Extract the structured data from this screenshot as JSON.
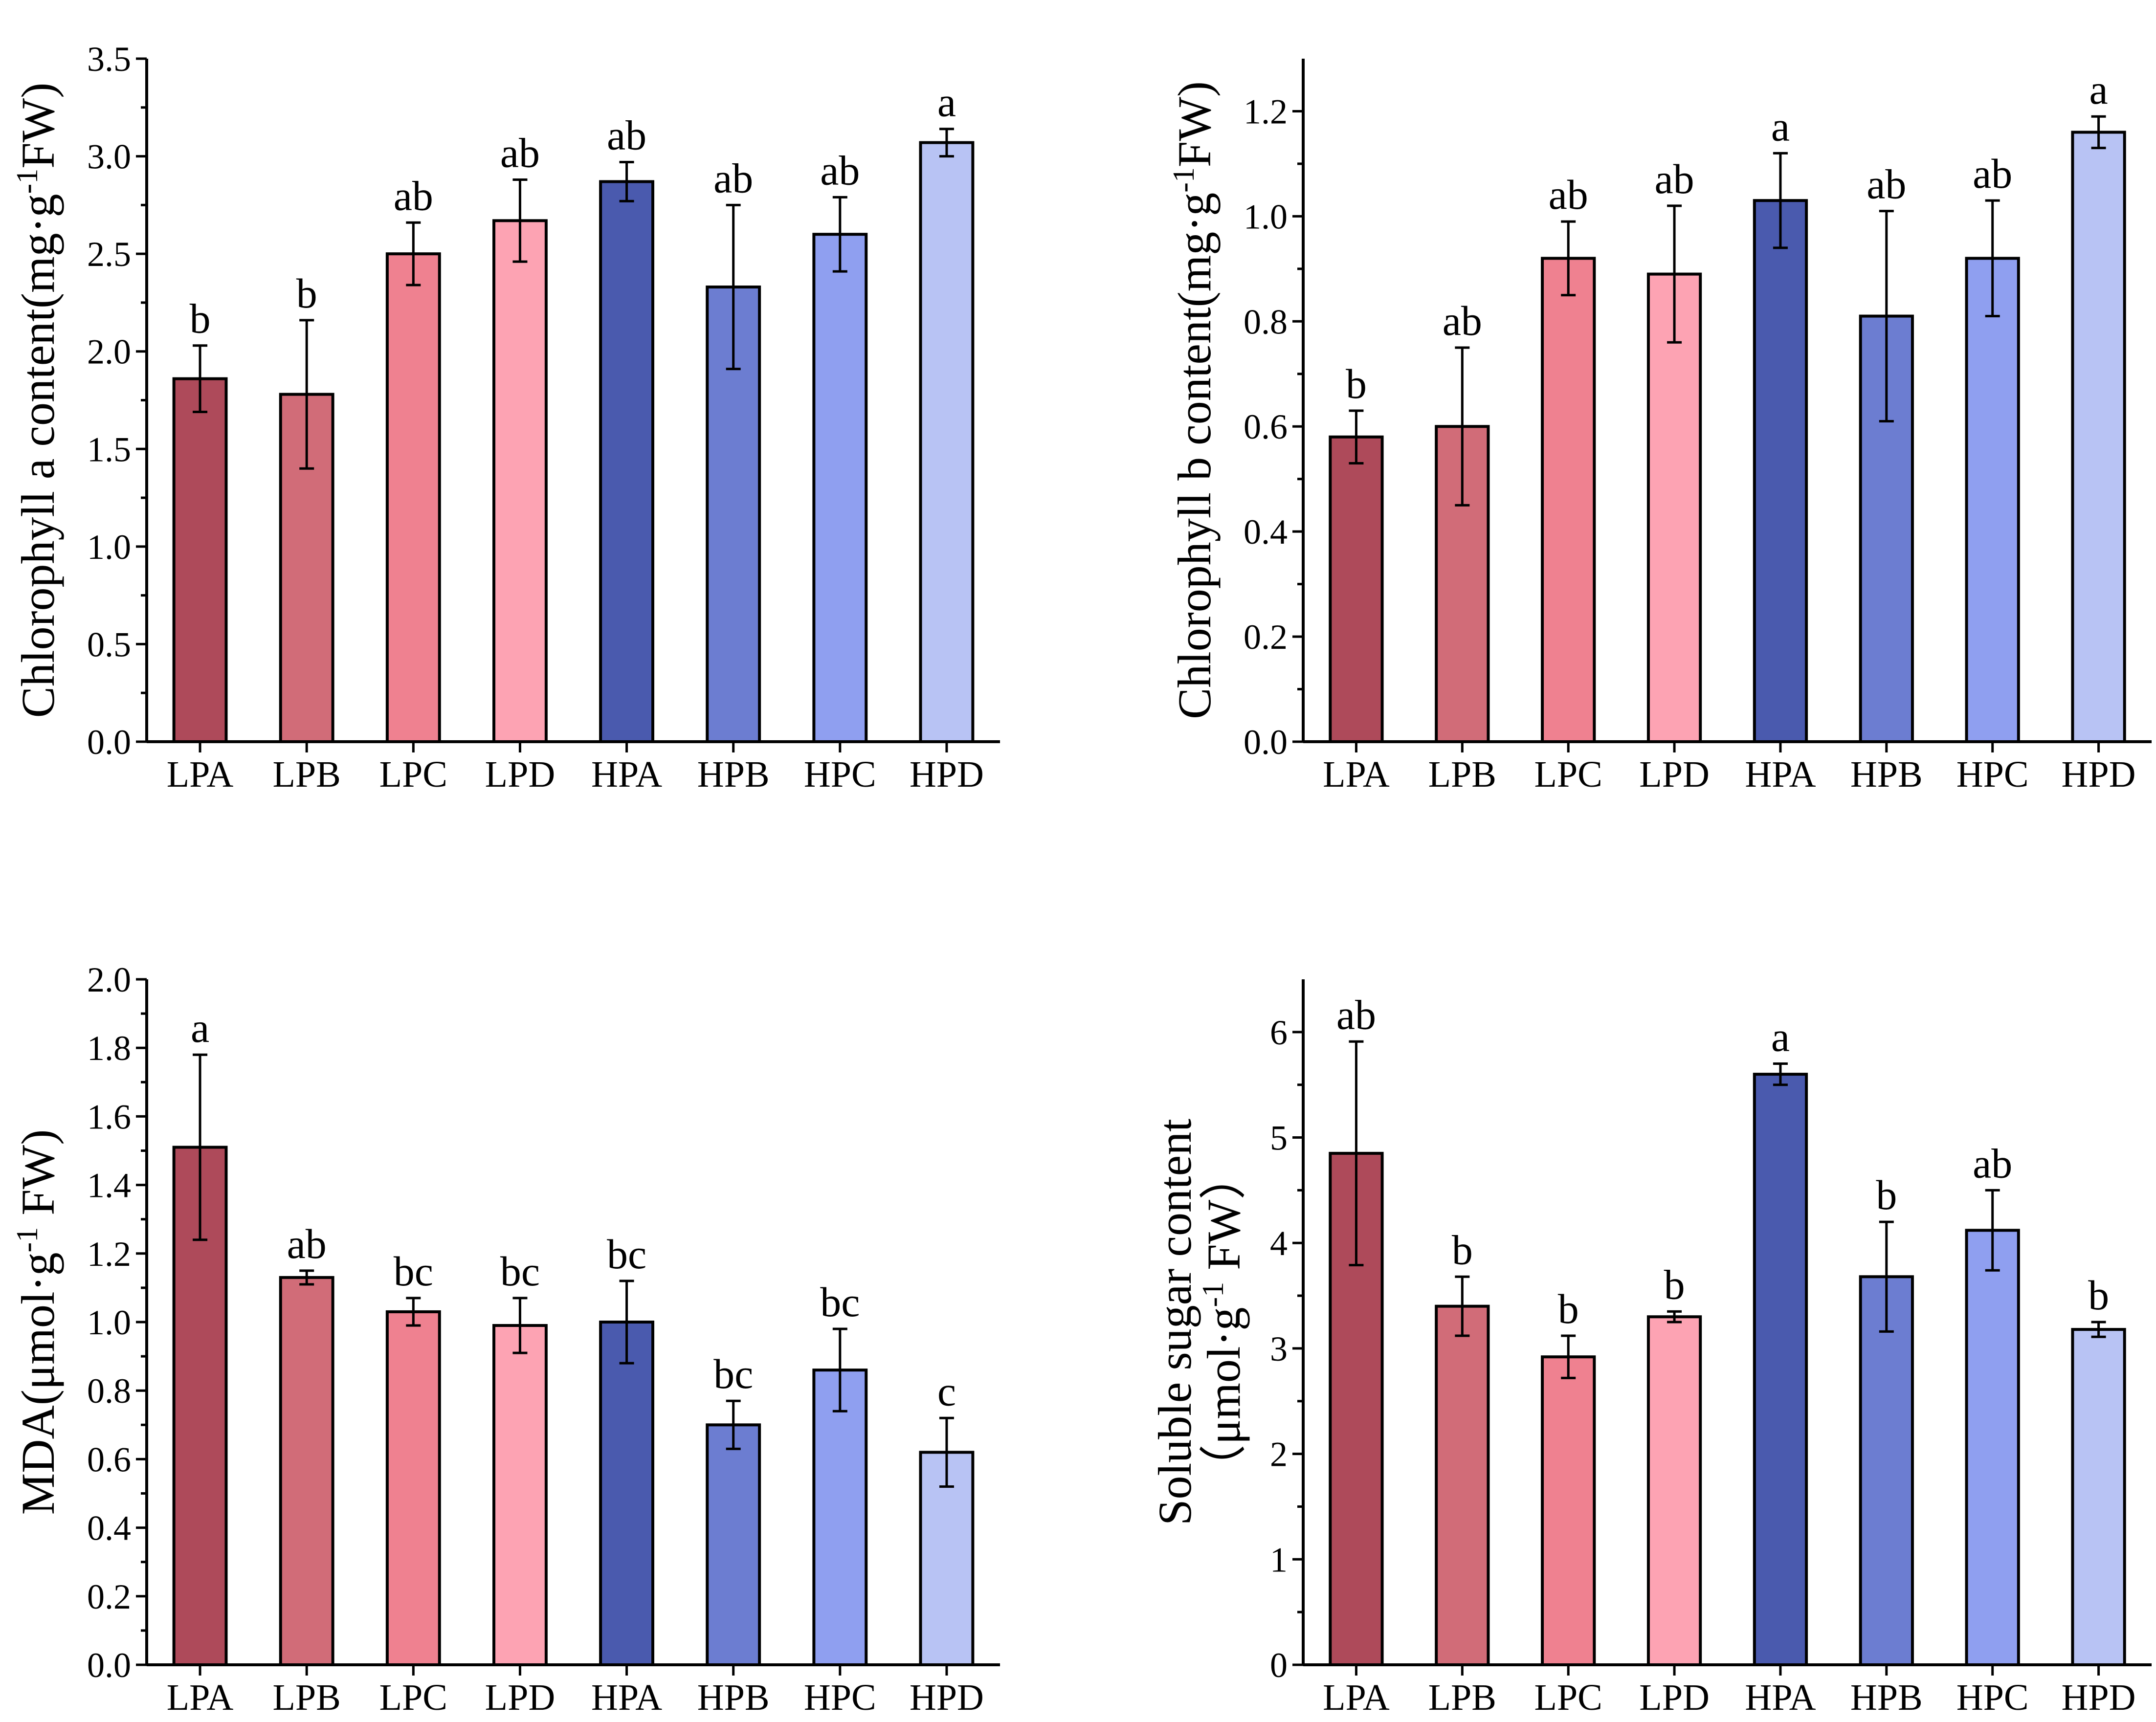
{
  "colors": [
    "#ae4a5a",
    "#d16c78",
    "#ef8190",
    "#fda3b3",
    "#4a5aae",
    "#6c7dd1",
    "#8f9ff0",
    "#b8c3f4"
  ],
  "chart_data": [
    {
      "type": "bar",
      "ylabel": "Chlorophyll a content(mg·g⁻¹FW)",
      "ylabel_parts": [
        "Chlorophyll a content(mg·g",
        "-1",
        "FW)"
      ],
      "categories": [
        "LPA",
        "LPB",
        "LPC",
        "LPD",
        "HPA",
        "HPB",
        "HPC",
        "HPD"
      ],
      "values": [
        1.86,
        1.78,
        2.5,
        2.67,
        2.87,
        2.33,
        2.6,
        3.07
      ],
      "errors": [
        0.17,
        0.38,
        0.16,
        0.21,
        0.1,
        0.42,
        0.19,
        0.07
      ],
      "labels": [
        "b",
        "b",
        "ab",
        "ab",
        "ab",
        "ab",
        "ab",
        "a"
      ],
      "ylim": [
        0,
        3.5
      ],
      "ticks": [
        0,
        0.5,
        1,
        1.5,
        2,
        2.5,
        3,
        3.5
      ],
      "tick_labels": [
        "0.0",
        "0.5",
        "1.0",
        "1.5",
        "2.0",
        "2.5",
        "3.0",
        "3.5"
      ]
    },
    {
      "type": "bar",
      "ylabel": "Chlorophyll b content(mg·g⁻¹FW)",
      "ylabel_parts": [
        "Chlorophyll b content(mg·g",
        "-1",
        "FW)"
      ],
      "categories": [
        "LPA",
        "LPB",
        "LPC",
        "LPD",
        "HPA",
        "HPB",
        "HPC",
        "HPD"
      ],
      "values": [
        0.58,
        0.6,
        0.92,
        0.89,
        1.03,
        0.81,
        0.92,
        1.16
      ],
      "errors": [
        0.05,
        0.15,
        0.07,
        0.13,
        0.09,
        0.2,
        0.11,
        0.03
      ],
      "labels": [
        "b",
        "ab",
        "ab",
        "ab",
        "a",
        "ab",
        "ab",
        "a"
      ],
      "ylim": [
        0,
        1.3
      ],
      "ticks": [
        0,
        0.2,
        0.4,
        0.6,
        0.8,
        1,
        1.2
      ],
      "tick_labels": [
        "0.0",
        "0.2",
        "0.4",
        "0.6",
        "0.8",
        "1.0",
        "1.2"
      ]
    },
    {
      "type": "bar",
      "ylabel": "MDA(μmol·g⁻¹ FW)",
      "ylabel_parts": [
        "MDA(μmol·g",
        "-1",
        " FW)"
      ],
      "categories": [
        "LPA",
        "LPB",
        "LPC",
        "LPD",
        "HPA",
        "HPB",
        "HPC",
        "HPD"
      ],
      "values": [
        1.51,
        1.13,
        1.03,
        0.99,
        1.0,
        0.7,
        0.86,
        0.62
      ],
      "errors": [
        0.27,
        0.02,
        0.04,
        0.08,
        0.12,
        0.07,
        0.12,
        0.1
      ],
      "labels": [
        "a",
        "ab",
        "bc",
        "bc",
        "bc",
        "bc",
        "bc",
        "c"
      ],
      "ylim": [
        0,
        2.0
      ],
      "ticks": [
        0,
        0.2,
        0.4,
        0.6,
        0.8,
        1,
        1.2,
        1.4,
        1.6,
        1.8,
        2
      ],
      "tick_labels": [
        "0.0",
        "0.2",
        "0.4",
        "0.6",
        "0.8",
        "1.0",
        "1.2",
        "1.4",
        "1.6",
        "1.8",
        "2.0"
      ]
    },
    {
      "type": "bar",
      "ylabel": "Soluble sugar content （μmol·g⁻¹ FW）",
      "ylabel_line1": "Soluble sugar content",
      "ylabel_parts": [
        "（μmol·g",
        "-1",
        " FW）"
      ],
      "categories": [
        "LPA",
        "LPB",
        "LPC",
        "LPD",
        "HPA",
        "HPB",
        "HPC",
        "HPD"
      ],
      "values": [
        4.85,
        3.4,
        2.92,
        3.3,
        5.6,
        3.68,
        4.12,
        3.18
      ],
      "errors": [
        1.06,
        0.28,
        0.2,
        0.05,
        0.1,
        0.52,
        0.38,
        0.07
      ],
      "labels": [
        "ab",
        "b",
        "b",
        "b",
        "a",
        "b",
        "ab",
        "b"
      ],
      "ylim": [
        0,
        6.5
      ],
      "ticks": [
        0,
        1,
        2,
        3,
        4,
        5,
        6
      ],
      "tick_labels": [
        "0",
        "1",
        "2",
        "3",
        "4",
        "5",
        "6"
      ]
    }
  ]
}
